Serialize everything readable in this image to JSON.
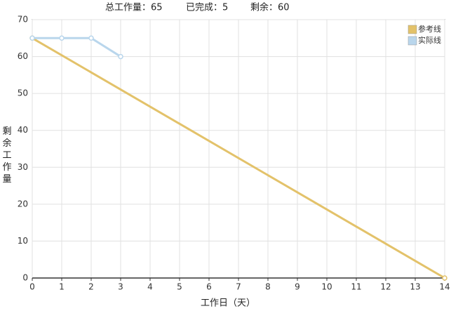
{
  "chart_data": {
    "type": "line",
    "summary": [
      "总工作量：65",
      "已完成：5",
      "剩余：60"
    ],
    "xlabel": "工作日（天）",
    "ylabel": "剩余工作量",
    "series": [
      {
        "name": "参考线",
        "color": "#e3c26a",
        "x": [
          0,
          14
        ],
        "values": [
          65,
          0
        ]
      },
      {
        "name": "实际线",
        "color": "#b9d6ec",
        "x": [
          0,
          1,
          2,
          3
        ],
        "values": [
          65,
          65,
          65,
          60
        ]
      }
    ],
    "xlim": [
      0,
      14
    ],
    "xticks": [
      0,
      1,
      2,
      3,
      4,
      5,
      6,
      7,
      8,
      9,
      10,
      11,
      12,
      13,
      14
    ],
    "ylim": [
      0,
      70
    ],
    "yticks": [
      0,
      10,
      20,
      30,
      40,
      50,
      60,
      70
    ],
    "grid": true,
    "legend": "top-right"
  }
}
